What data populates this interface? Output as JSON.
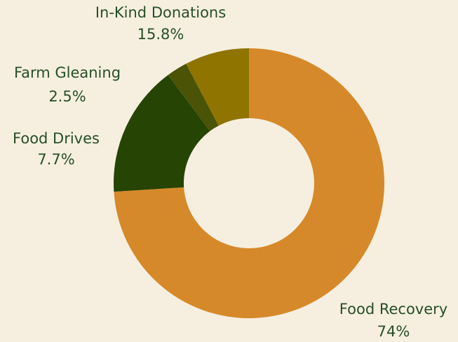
{
  "chart_data": {
    "type": "pie",
    "variant": "donut",
    "background": "#f6efe0",
    "label_color": "#264f26",
    "slices": [
      {
        "label": "Food Recovery",
        "value": 74,
        "display": "74%",
        "color": "#d6892a"
      },
      {
        "label": "In-Kind Donations",
        "value": 15.8,
        "display": "15.8%",
        "color": "#264404"
      },
      {
        "label": "Farm Gleaning",
        "value": 2.5,
        "display": "2.5%",
        "color": "#4a5306"
      },
      {
        "label": "Food Drives",
        "value": 7.7,
        "display": "7.7%",
        "color": "#8f7400"
      }
    ]
  }
}
